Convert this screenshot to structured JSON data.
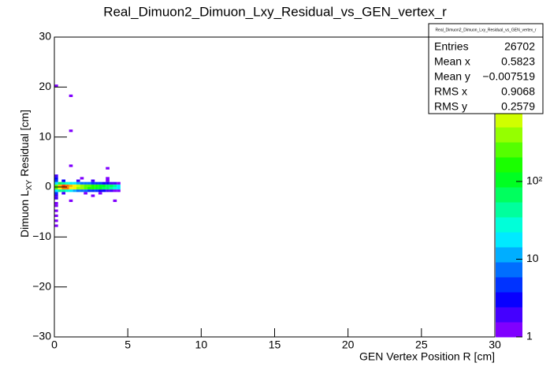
{
  "chart_data": {
    "type": "heatmap",
    "title": "Real_Dimuon2_Dimuon_Lxy_Residual_vs_GEN_vertex_r",
    "xlabel": "GEN Vertex Position R [cm]",
    "ylabel_main": "Dimuon L",
    "ylabel_sub": "XY",
    "ylabel_rest": "Residual [cm]",
    "xlim": [
      0,
      30
    ],
    "xticks": [
      0,
      5,
      10,
      15,
      20,
      25,
      30
    ],
    "ylim": [
      -30,
      30
    ],
    "yticks": [
      {
        "value": -30,
        "label": "−30"
      },
      {
        "value": -20,
        "label": "−20"
      },
      {
        "value": -10,
        "label": "−10"
      },
      0,
      10,
      20,
      30
    ],
    "zlim": [
      1,
      7200
    ],
    "zlog": true,
    "zticks": [
      1,
      10,
      {
        "value": 100,
        "label": "10²"
      },
      {
        "value": 1000,
        "label": "10³"
      }
    ],
    "xbin_size": 0.25,
    "ybin_size": 0.5,
    "palette": [
      "#8000ff",
      "#4400ff",
      "#0800ff",
      "#0033ff",
      "#006eff",
      "#00aeff",
      "#00eaff",
      "#00ffd9",
      "#00ff9d",
      "#00ff5e",
      "#00ff22",
      "#1aff00",
      "#55ff00",
      "#95ff00",
      "#d0ff00",
      "#fff200",
      "#ffb700",
      "#ff7700",
      "#ff3c00",
      "#ff0000"
    ],
    "x": [
      0,
      0.25,
      0.5,
      0.75,
      1,
      1.25,
      1.5,
      1.75,
      2,
      2.25,
      2.5,
      2.75,
      3,
      3.25,
      3.5,
      3.75,
      4,
      4.25,
      0,
      0.25,
      0.5,
      0.75,
      1,
      1.25,
      1.5,
      1.75,
      2,
      2.25,
      2.5,
      2.75,
      3,
      3.25,
      3.5,
      3.75,
      4,
      4.25,
      0,
      0.25,
      0.5,
      0.75,
      1,
      1.25,
      1.5,
      1.75,
      2,
      2.25,
      2.5,
      2.75,
      3,
      3.25,
      3.5,
      3.75,
      4,
      4.25,
      0,
      0.25,
      0.5,
      0.75,
      1,
      1.25,
      1.5,
      1.75,
      2,
      2.25,
      2.5,
      2.75,
      3,
      3.25,
      3.5,
      3.75,
      4,
      4.25,
      0,
      0.5,
      1.5,
      2.5,
      3.5,
      0,
      1.75,
      3.5,
      0,
      1,
      3.5,
      0,
      0.5,
      2,
      3,
      0,
      2.5,
      0,
      1,
      4,
      0,
      0,
      0,
      0,
      0,
      0,
      1,
      1,
      0
    ],
    "y": [
      0,
      0,
      0,
      0,
      0,
      0,
      0,
      0,
      0,
      0,
      0,
      0,
      0,
      0,
      0,
      0,
      0,
      0,
      -0.5,
      -0.5,
      -0.5,
      -0.5,
      -0.5,
      -0.5,
      -0.5,
      -0.5,
      -0.5,
      -0.5,
      -0.5,
      -0.5,
      -0.5,
      -0.5,
      -0.5,
      -0.5,
      -0.5,
      -0.5,
      0.5,
      0.5,
      0.5,
      0.5,
      0.5,
      0.5,
      0.5,
      0.5,
      0.5,
      0.5,
      0.5,
      0.5,
      0.5,
      0.5,
      0.5,
      0.5,
      0.5,
      0.5,
      -1,
      -1,
      -1,
      -1,
      -1,
      -1,
      -1,
      -1,
      -1,
      -1,
      -1,
      -1,
      -1,
      -1,
      -1,
      -1,
      -1,
      -1,
      1,
      1,
      1,
      1,
      1,
      1.5,
      1.5,
      1.5,
      2,
      4,
      3.5,
      -1.5,
      -1.5,
      -1.5,
      -1.5,
      -2,
      -2,
      -2.5,
      -3,
      -3,
      -3.5,
      -4,
      -5,
      -6,
      -7,
      -8,
      11,
      18,
      20
    ],
    "values": [
      300,
      1500,
      3000,
      2500,
      1500,
      900,
      600,
      400,
      300,
      250,
      200,
      150,
      120,
      100,
      80,
      60,
      40,
      20,
      250,
      1200,
      2500,
      2000,
      1200,
      800,
      500,
      350,
      250,
      200,
      180,
      130,
      100,
      80,
      60,
      50,
      30,
      15,
      20,
      60,
      40,
      30,
      20,
      15,
      10,
      8,
      8,
      6,
      5,
      5,
      4,
      3,
      3,
      2,
      2,
      1,
      15,
      50,
      35,
      25,
      18,
      12,
      9,
      7,
      6,
      5,
      5,
      4,
      3,
      3,
      2,
      2,
      1,
      1,
      5,
      3,
      2,
      2,
      1,
      3,
      1,
      1,
      2,
      1,
      1,
      4,
      2,
      1,
      1,
      2,
      1,
      2,
      1,
      1,
      1,
      1,
      1,
      1,
      1,
      1,
      1,
      1,
      1
    ],
    "stats": {
      "title": "Real_Dimuon2_Dimuon_Lxy_Residual_vs_GEN_vertex_r",
      "labels": [
        "Entries",
        "Mean x",
        "Mean y",
        "RMS x",
        "RMS y"
      ],
      "values": [
        "26702",
        "0.5823",
        "−0.007519",
        "0.9068",
        "0.2579"
      ]
    }
  }
}
